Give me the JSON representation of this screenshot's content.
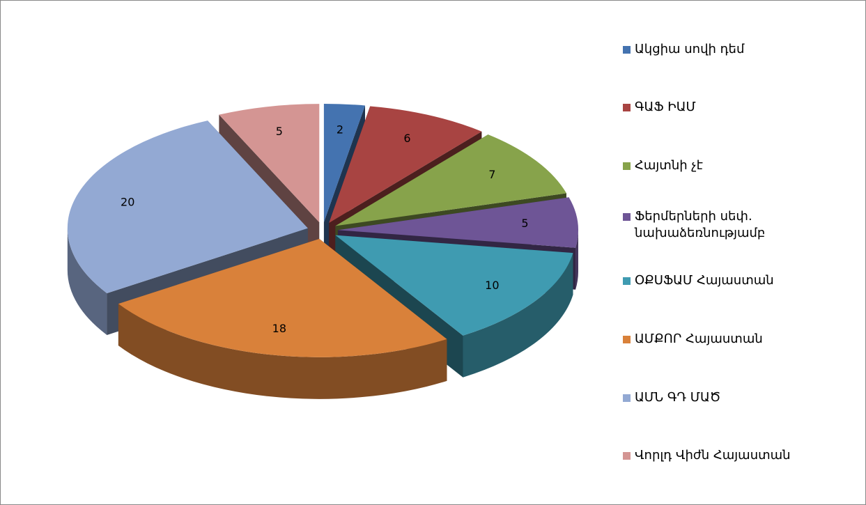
{
  "chart_data": {
    "type": "pie",
    "categories": [
      "Ակցիա սովի դեմ",
      "ԳԱՖ ԻԱՄ",
      "Հայտնի չէ",
      "Ֆերմերների սեփ. նախաձեռնությամբ",
      "ՕՔՍՖԱՄ Հայաստան",
      "ԱՄՔՈՐ Հայաստան",
      "ԱՄՆ ԳԴ ՄԱԾ",
      "Վորլդ Վիժն Հայաստան"
    ],
    "values": [
      2,
      6,
      7,
      5,
      10,
      18,
      20,
      5
    ],
    "colors": [
      "#4473b0",
      "#a84442",
      "#87a34b",
      "#6e5596",
      "#3f9bb1",
      "#d9813a",
      "#93a9d3",
      "#d49593"
    ],
    "legend": "right"
  }
}
